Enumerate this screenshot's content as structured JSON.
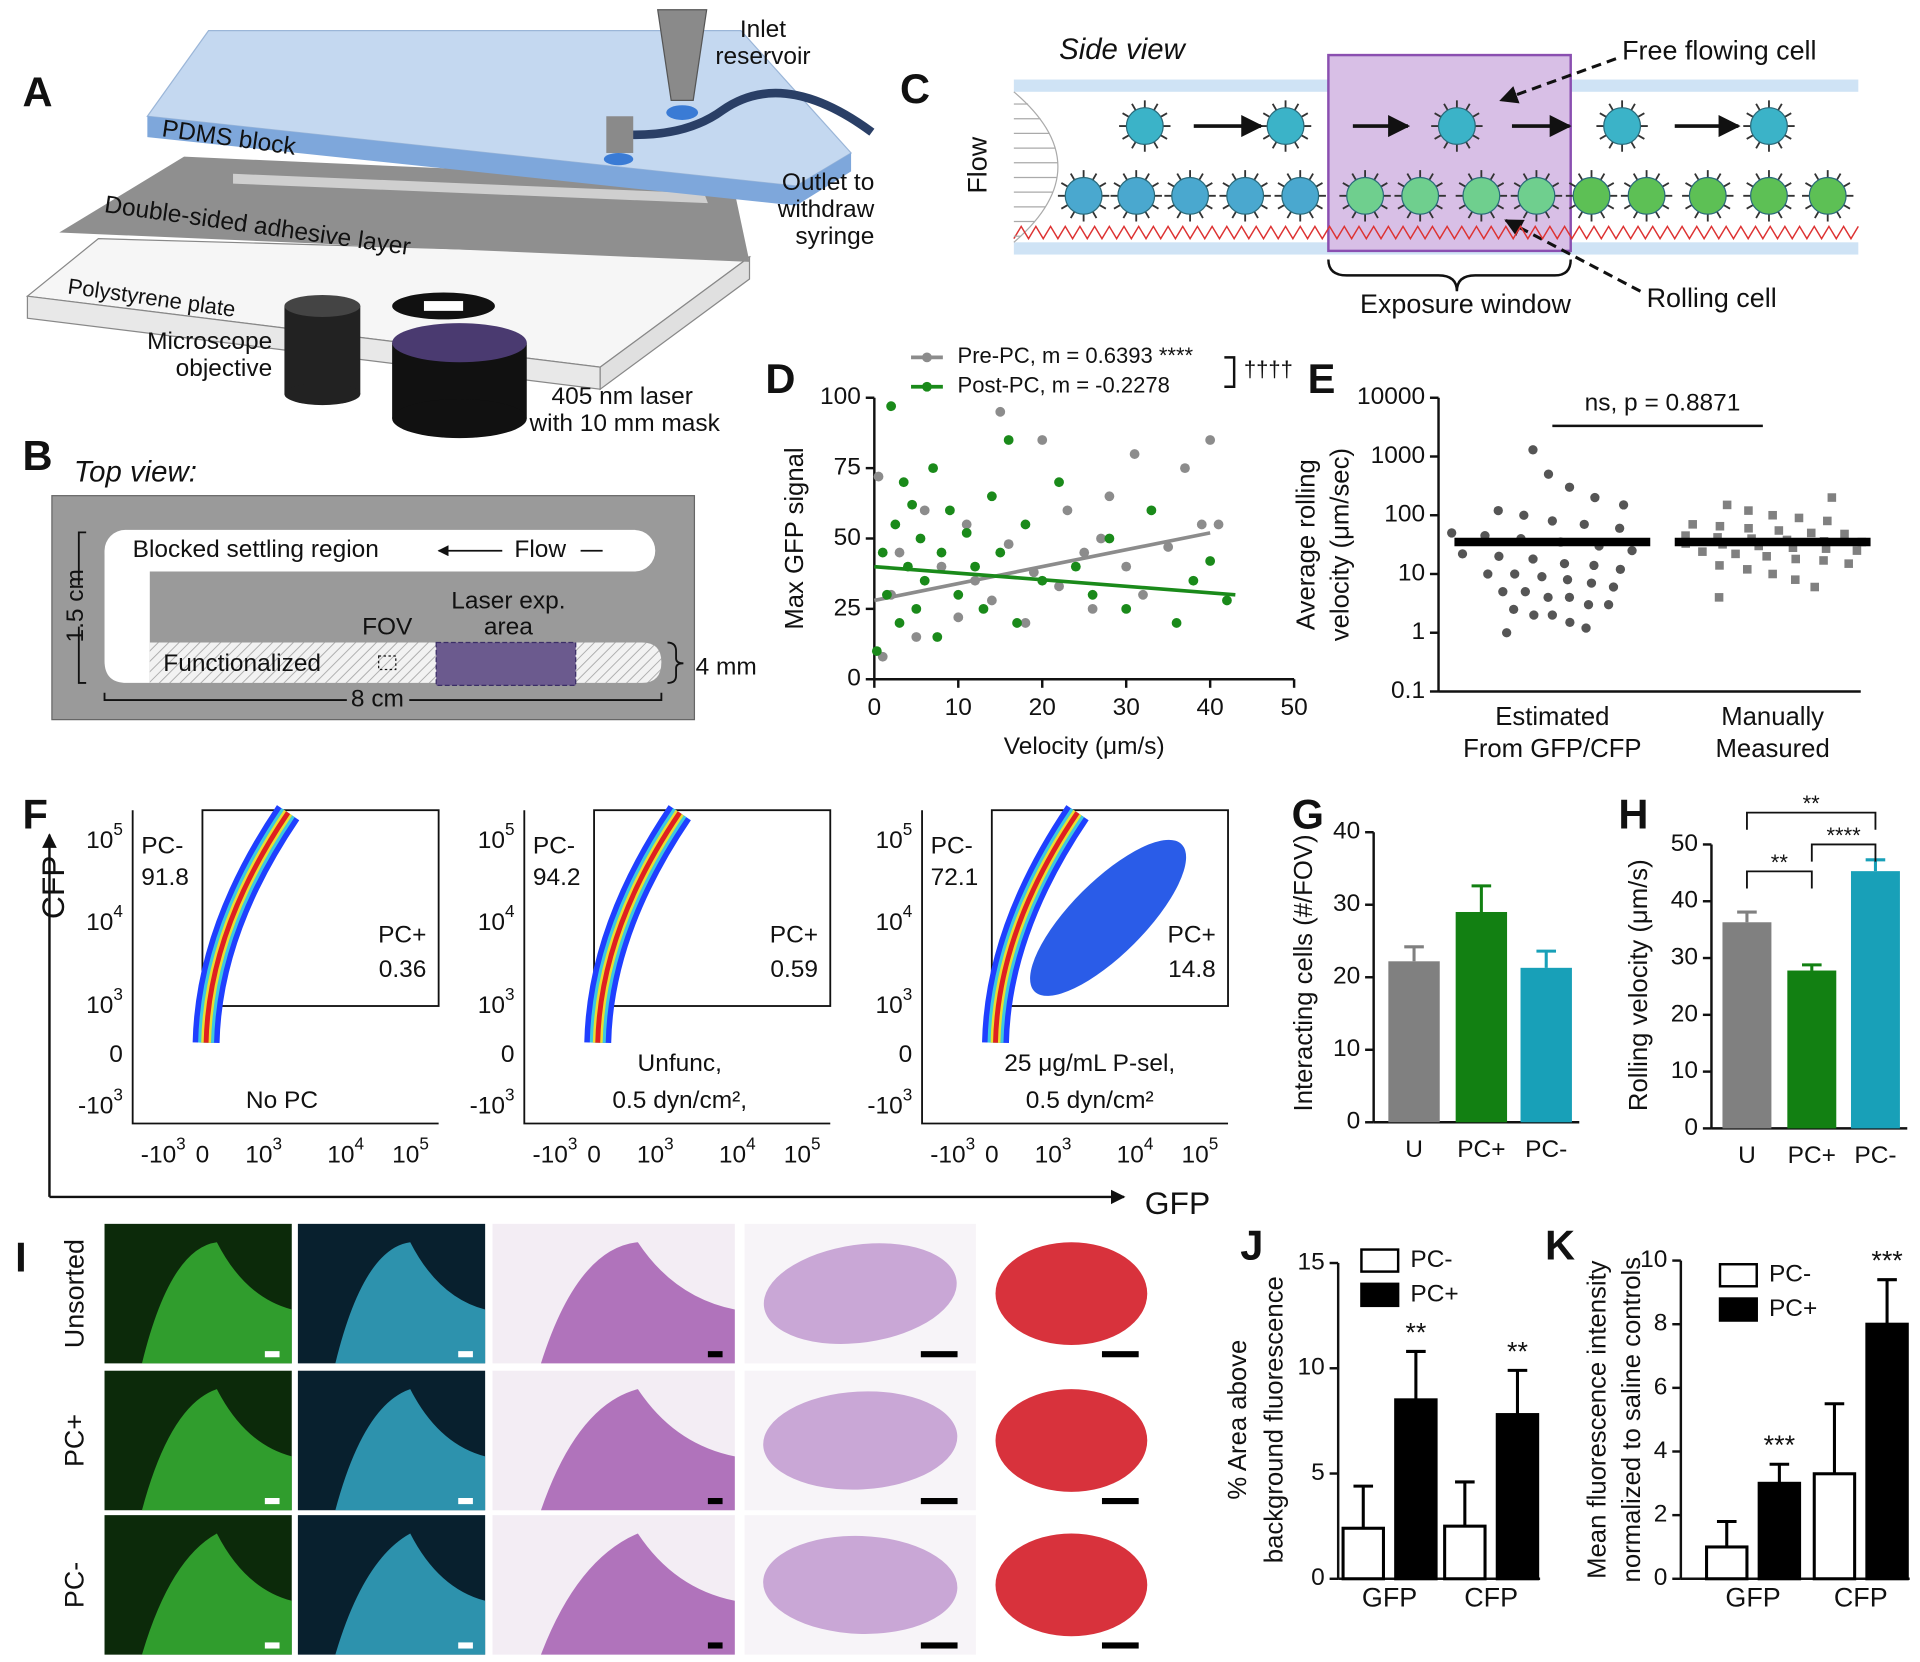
{
  "panel_letters": [
    "A",
    "B",
    "C",
    "D",
    "E",
    "F",
    "G",
    "H",
    "I",
    "J",
    "K"
  ],
  "panel_a": {
    "inlet": [
      "Inlet",
      "reservoir"
    ],
    "pdms": "PDMS block",
    "outlet": [
      "Outlet to",
      "withdraw",
      "syringe"
    ],
    "adhesive": "Double-sided adhesive layer",
    "plate": "Polystyrene plate",
    "objective": [
      "Microscope",
      "objective"
    ],
    "laser": [
      "405 nm laser",
      "with 10 mm mask"
    ]
  },
  "panel_b": {
    "title": "Top view:",
    "settling": "Blocked  settling region",
    "flow": "Flow",
    "height": "1.5 cm",
    "laser_area": [
      "Laser exp.",
      "area"
    ],
    "fov": "FOV",
    "functionalized": "Functionalized",
    "width": "4 mm",
    "length": "8 cm"
  },
  "panel_c": {
    "title": "Side view",
    "flow": "Flow",
    "free": "Free flowing cell",
    "window": "Exposure window",
    "rolling": "Rolling cell"
  },
  "panel_f": {
    "y_axis_label": "CFP",
    "x_axis_label": "GFP",
    "yticks": [
      {
        "base": "10",
        "exp": "5"
      },
      {
        "base": "10",
        "exp": "4"
      },
      {
        "base": "10",
        "exp": "3"
      },
      {
        "base": "0"
      },
      {
        "base": "-10",
        "exp": "3"
      }
    ],
    "xticks": [
      {
        "base": "-10",
        "exp": "3"
      },
      {
        "base": "0"
      },
      {
        "base": "10",
        "exp": "3"
      },
      {
        "base": "10",
        "exp": "4"
      },
      {
        "base": "10",
        "exp": "5"
      }
    ],
    "plots": [
      {
        "negative_gate": "PC-",
        "negative_percent": 91.8,
        "positive_gate": "PC+",
        "positive_percent": 0.36,
        "condition": [
          "No PC"
        ]
      },
      {
        "negative_gate": "PC-",
        "negative_percent": 94.2,
        "positive_gate": "PC+",
        "positive_percent": 0.59,
        "condition": [
          "Unfunc,",
          "0.5 dyn/cm²,"
        ]
      },
      {
        "negative_gate": "PC-",
        "negative_percent": 72.1,
        "positive_gate": "PC+",
        "positive_percent": 14.8,
        "condition": [
          "25 μg/mL P-sel,",
          "0.5 dyn/cm²"
        ]
      }
    ]
  },
  "panel_i": {
    "rows": [
      "Unsorted",
      "PC+",
      "PC-"
    ]
  },
  "chart_data": [
    {
      "type": "scatter",
      "ylabel": "Max GFP signal",
      "xlabel": "Velocity (μm/s)",
      "xlim": [
        0,
        50
      ],
      "ylim": [
        0,
        100
      ],
      "xticks": [
        0,
        10,
        20,
        30,
        40,
        50
      ],
      "yticks": [
        0,
        25,
        50,
        75,
        100
      ],
      "annotation": "††††",
      "series": [
        {
          "name": "Pre-PC, m = 0.6393 ****",
          "color": "#8c8c8c",
          "x": [
            0.5,
            1,
            2,
            3,
            5,
            6,
            8,
            10,
            11,
            12,
            14,
            15,
            16,
            18,
            19,
            20,
            22,
            23,
            25,
            26,
            27,
            28,
            30,
            31,
            32,
            35,
            37,
            39,
            40,
            41
          ],
          "values": [
            72,
            8,
            30,
            45,
            15,
            60,
            40,
            22,
            55,
            35,
            28,
            95,
            48,
            20,
            38,
            85,
            33,
            60,
            45,
            25,
            50,
            65,
            40,
            80,
            30,
            47,
            75,
            55,
            85,
            55
          ],
          "fit": {
            "x": [
              0,
              40
            ],
            "values": [
              28,
              52
            ]
          }
        },
        {
          "name": "Post-PC, m = -0.2278",
          "color": "#1a8a1a",
          "x": [
            0.3,
            1,
            1.5,
            2,
            2.5,
            3,
            3.5,
            4,
            4.5,
            5,
            5.5,
            6,
            7,
            7.5,
            8,
            9,
            10,
            11,
            12,
            13,
            14,
            15,
            16,
            17,
            18,
            20,
            22,
            24,
            26,
            28,
            30,
            33,
            36,
            38,
            40,
            42
          ],
          "values": [
            10,
            45,
            30,
            97,
            55,
            20,
            70,
            40,
            62,
            25,
            50,
            35,
            75,
            15,
            45,
            60,
            30,
            52,
            40,
            25,
            65,
            45,
            85,
            20,
            55,
            35,
            70,
            40,
            30,
            50,
            25,
            60,
            20,
            35,
            42,
            28
          ],
          "fit": {
            "x": [
              0,
              43
            ],
            "values": [
              40,
              30
            ]
          }
        }
      ]
    },
    {
      "type": "dot_plot",
      "ylabel": [
        "Average rolling",
        "velocity (μm/sec)"
      ],
      "categories": [
        [
          "Estimated",
          "From GFP/CFP"
        ],
        [
          "Manually",
          "Measured"
        ]
      ],
      "log_scale": true,
      "ylim": [
        0.1,
        10000
      ],
      "yticks": [
        0.1,
        1,
        10,
        100,
        1000,
        10000
      ],
      "annotation": "ns, p = 0.8871",
      "values": [
        35,
        35
      ],
      "colors": [
        "#555555",
        "#808080"
      ],
      "markers": [
        "circle",
        "square"
      ],
      "points": [
        [
          1,
          1.2,
          1.5,
          2,
          2,
          2.5,
          3,
          3,
          4,
          4,
          5,
          5,
          6,
          7,
          8,
          9,
          10,
          10,
          12,
          14,
          15,
          18,
          20,
          22,
          25,
          30,
          35,
          40,
          45,
          50,
          60,
          70,
          80,
          100,
          120,
          150,
          200,
          300,
          500,
          1300
        ],
        [
          4,
          6,
          8,
          10,
          12,
          14,
          15,
          17,
          18,
          20,
          22,
          24,
          25,
          27,
          28,
          30,
          32,
          33,
          35,
          36,
          38,
          40,
          42,
          45,
          48,
          50,
          55,
          60,
          65,
          70,
          80,
          90,
          100,
          120,
          150,
          200
        ]
      ]
    },
    {
      "type": "bar",
      "ylabel": "Interacting cells (#/FOV)",
      "categories": [
        "U",
        "PC+",
        "PC-"
      ],
      "values": [
        22.2,
        29,
        21.3
      ],
      "errors": [
        2,
        3.6,
        2.3
      ],
      "colors": [
        "#808080",
        "#128012",
        "#18a0b8"
      ],
      "ylim": [
        0,
        40
      ],
      "yticks": [
        0,
        10,
        20,
        30,
        40
      ]
    },
    {
      "type": "bar",
      "ylabel": "Rolling velocity (μm/s)",
      "categories": [
        "U",
        "PC+",
        "PC-"
      ],
      "values": [
        36.3,
        27.8,
        45.3
      ],
      "errors": [
        1.8,
        1,
        2
      ],
      "colors": [
        "#808080",
        "#128012",
        "#18a0b8"
      ],
      "ylim": [
        0,
        50
      ],
      "yticks": [
        0,
        10,
        20,
        30,
        40,
        50
      ],
      "annotations": [
        "**",
        "****",
        "**"
      ]
    },
    {
      "type": "grouped_bar",
      "ylabel": [
        "% Area above",
        "background fluorescence"
      ],
      "categories": [
        "GFP",
        "CFP"
      ],
      "ylim": [
        0,
        15
      ],
      "yticks": [
        0,
        5,
        10,
        15
      ],
      "series": [
        {
          "name": "PC-",
          "color": "#ffffff",
          "values": [
            2.4,
            2.5
          ],
          "errors": [
            2,
            2.1
          ]
        },
        {
          "name": "PC+",
          "color": "#000000",
          "values": [
            8.5,
            7.8
          ],
          "errors": [
            2.3,
            2.1
          ],
          "annotations": [
            "**",
            "**"
          ]
        }
      ]
    },
    {
      "type": "grouped_bar",
      "ylabel": [
        "Mean fluorescence intensity",
        "normalized to saline controls"
      ],
      "categories": [
        "GFP",
        "CFP"
      ],
      "ylim": [
        0,
        10
      ],
      "yticks": [
        0,
        2,
        4,
        6,
        8,
        10
      ],
      "series": [
        {
          "name": "PC-",
          "color": "#ffffff",
          "values": [
            1,
            3.3
          ],
          "errors": [
            0.8,
            2.2
          ]
        },
        {
          "name": "PC+",
          "color": "#000000",
          "values": [
            3,
            8
          ],
          "errors": [
            0.6,
            1.4
          ],
          "annotations": [
            "***",
            "***"
          ]
        }
      ]
    }
  ]
}
